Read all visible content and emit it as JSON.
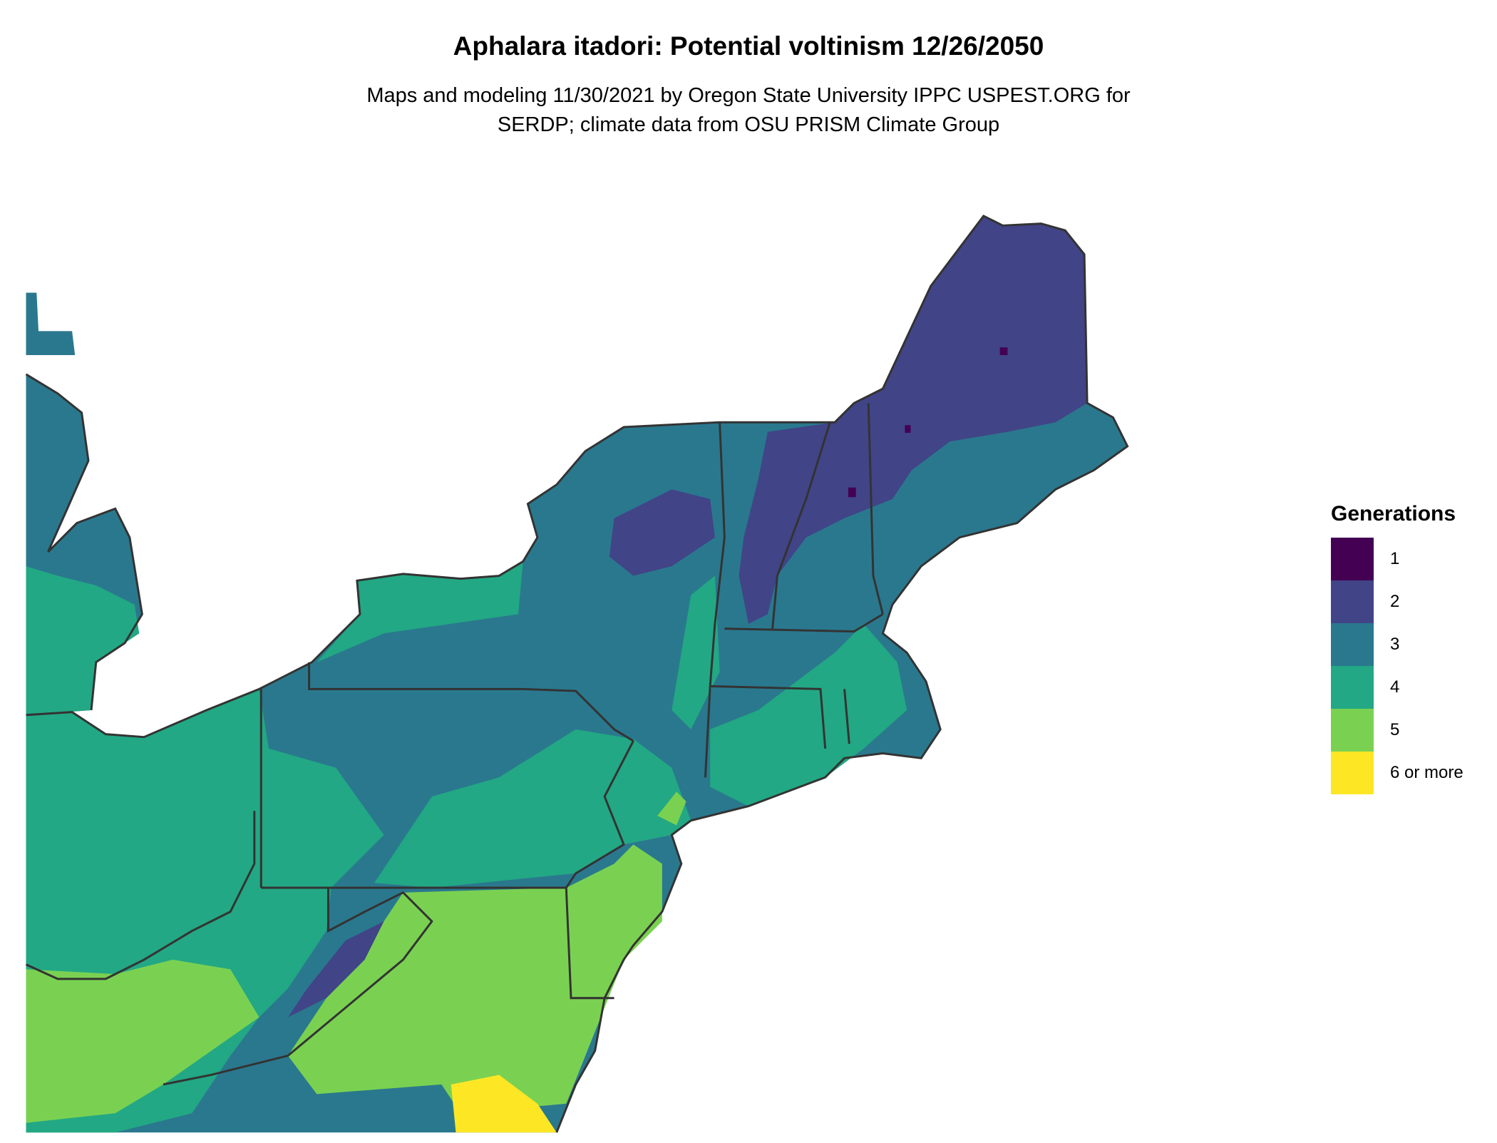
{
  "title": "Aphalara itadori: Potential voltinism 12/26/2050",
  "subtitle_lines": [
    "Maps and modeling 11/30/2021 by Oregon State University IPPC USPEST.ORG for",
    "SERDP; climate data from OSU PRISM Climate Group"
  ],
  "legend": {
    "title": "Generations",
    "items": [
      {
        "label": "1",
        "color": "#440154"
      },
      {
        "label": "2",
        "color": "#414487"
      },
      {
        "label": "3",
        "color": "#2a788e"
      },
      {
        "label": "4",
        "color": "#22a884"
      },
      {
        "label": "5",
        "color": "#7ad151"
      },
      {
        "label": "6 or more",
        "color": "#fde725"
      }
    ]
  },
  "map": {
    "region": "Northeastern United States",
    "border_color": "#333333"
  }
}
